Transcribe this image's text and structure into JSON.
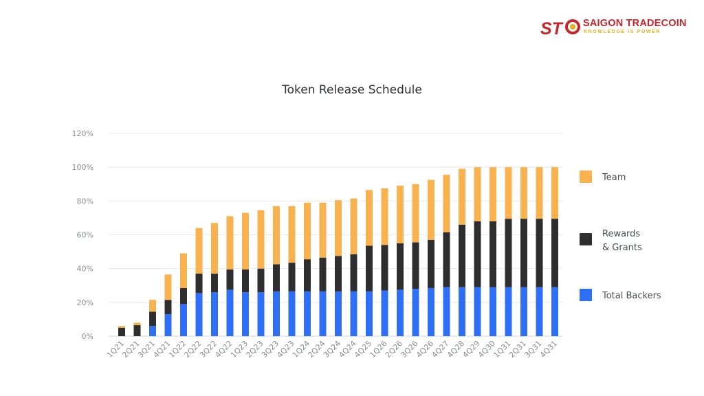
{
  "logo": {
    "mark": "STC",
    "name": "SAIGON TRADECOIN",
    "tagline": "KNOWLEDGE IS POWER",
    "colors": {
      "primary": "#c6262b",
      "accent": "#e7b11c"
    }
  },
  "chart_data": {
    "type": "bar",
    "stacked": true,
    "title": "Token Release Schedule",
    "xlabel": "",
    "ylabel": "",
    "ylim": [
      0,
      120
    ],
    "yticks": [
      "0%",
      "20%",
      "40%",
      "60%",
      "80%",
      "100%",
      "120%"
    ],
    "grid": true,
    "legend_position": "right",
    "categories": [
      "1Q21",
      "2Q21",
      "3Q21",
      "4Q21",
      "1Q22",
      "2Q22",
      "3Q22",
      "4Q22",
      "1Q23",
      "2Q23",
      "3Q23",
      "4Q23",
      "1Q24",
      "2Q24",
      "3Q24",
      "4Q24",
      "4Q25",
      "1Q26",
      "2Q26",
      "3Q26",
      "4Q26",
      "4Q27",
      "4Q28",
      "4Q29",
      "4Q30",
      "1Q31",
      "2Q31",
      "3Q31",
      "4Q31"
    ],
    "series": [
      {
        "name": "Total Backers",
        "color": "#2f6ff5",
        "values": [
          0,
          0,
          6,
          13,
          19,
          25.5,
          26,
          27.5,
          26,
          26,
          26.5,
          26.5,
          26.5,
          26.5,
          26.5,
          26.5,
          26.5,
          27,
          27.5,
          28,
          28.5,
          29,
          29,
          29,
          29,
          29,
          29,
          29,
          29
        ]
      },
      {
        "name": "Rewards & Grants",
        "color": "#2e2e30",
        "values": [
          5,
          6.5,
          8.5,
          8.5,
          9.5,
          11.5,
          11,
          12,
          13.5,
          14,
          16,
          17,
          19,
          20,
          21,
          22,
          27,
          27,
          27.5,
          27.5,
          28.5,
          32.5,
          37,
          39,
          39,
          40.5,
          40.5,
          40.5,
          40.5
        ]
      },
      {
        "name": "Team",
        "color": "#f8b24f",
        "values": [
          1,
          1.5,
          7,
          15,
          20.5,
          27,
          30,
          31.5,
          33.5,
          34.5,
          34.5,
          33.5,
          33.5,
          32.5,
          33,
          33,
          33,
          33.5,
          34,
          34.5,
          35.5,
          34,
          33,
          32,
          32,
          30.5,
          30.5,
          30.5,
          30.5
        ]
      }
    ]
  }
}
